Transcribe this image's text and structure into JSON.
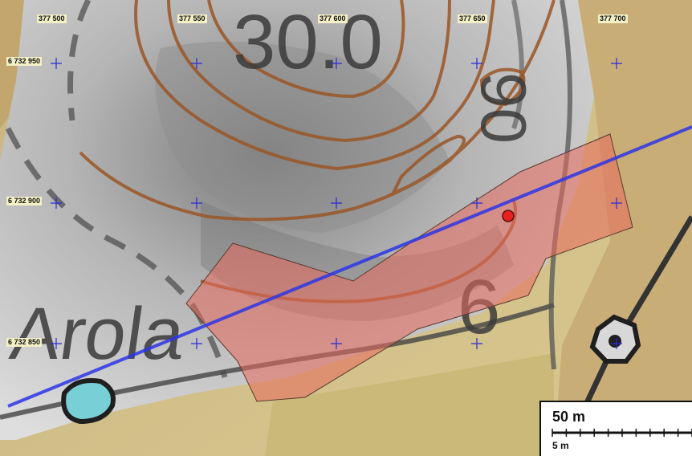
{
  "map": {
    "x_coordinates": [
      "377 500",
      "377 550",
      "377 600",
      "377 650",
      "377 700"
    ],
    "y_coordinates": [
      "6 732 950",
      "6 732 900",
      "6 732 850"
    ],
    "place_name": "Arola",
    "contour_labels": [
      "30.0",
      "90",
      "6"
    ]
  },
  "scalebar": {
    "main_label": "50 m",
    "sub_label": "5 m"
  },
  "colors": {
    "grid_cross": "#2a2ad6",
    "line": "#2d35e6",
    "area_fill": "#e86a5c",
    "point": "#e82020",
    "contour": "#9a5626",
    "water": "#79cfd6",
    "road": "#3a3a3a"
  }
}
